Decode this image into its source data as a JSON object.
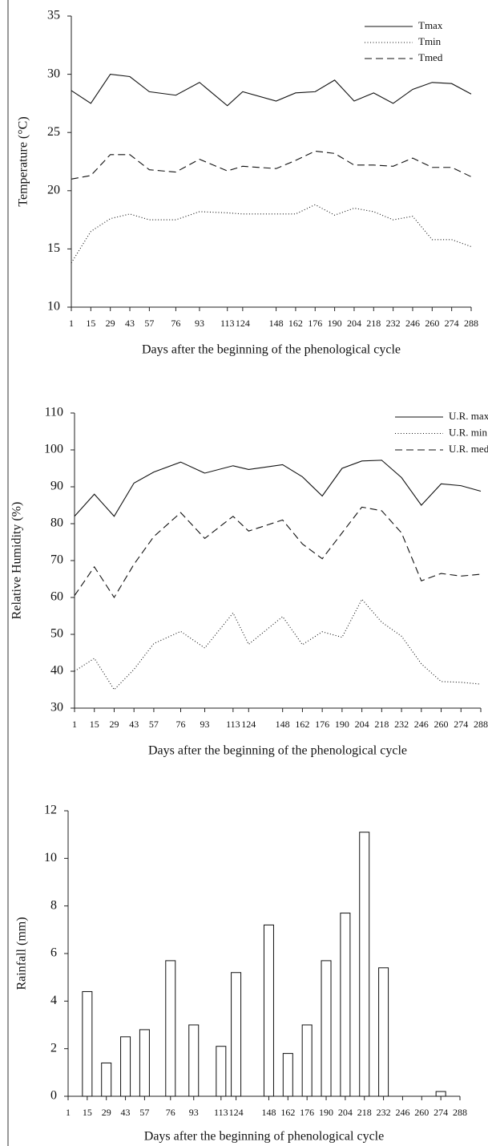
{
  "chart_data": [
    {
      "type": "line",
      "y_label": "Temperature (°C)",
      "x_label": "Days after the beginning of the phenological cycle",
      "x": [
        1,
        15,
        29,
        43,
        57,
        76,
        93,
        113,
        124,
        148,
        162,
        176,
        190,
        204,
        218,
        232,
        246,
        260,
        274,
        288
      ],
      "xlim": [
        1,
        288
      ],
      "xticks": [
        1,
        15,
        29,
        43,
        57,
        76,
        93,
        113,
        124,
        148,
        162,
        176,
        190,
        204,
        218,
        232,
        246,
        260,
        274,
        288
      ],
      "ylim": [
        10,
        35
      ],
      "yticks": [
        10,
        15,
        20,
        25,
        30,
        35
      ],
      "legend": "upper right",
      "series": [
        {
          "name": "Tmax",
          "color": "#111111",
          "dash": "solid",
          "values": [
            28.6,
            27.5,
            30.0,
            29.8,
            28.5,
            28.2,
            29.3,
            27.3,
            28.5,
            27.7,
            28.4,
            28.5,
            29.5,
            27.7,
            28.4,
            27.5,
            28.7,
            29.3,
            29.2,
            28.3
          ]
        },
        {
          "name": "Tmin",
          "color": "#111111",
          "dash": "dotted",
          "values": [
            13.8,
            16.5,
            17.6,
            18.0,
            17.5,
            17.5,
            18.2,
            18.1,
            18.0,
            18.0,
            18.0,
            18.8,
            17.9,
            18.5,
            18.2,
            17.5,
            17.8,
            15.8,
            15.8,
            15.2
          ]
        },
        {
          "name": "Tmed",
          "color": "#111111",
          "dash": "dashed",
          "values": [
            21.0,
            21.3,
            23.1,
            23.1,
            21.8,
            21.6,
            22.7,
            21.7,
            22.1,
            21.9,
            22.6,
            23.4,
            23.2,
            22.2,
            22.2,
            22.1,
            22.8,
            22.0,
            22.0,
            21.2
          ]
        }
      ]
    },
    {
      "type": "line",
      "y_label": "Relative Humidity (%)",
      "x_label": "Days after the beginning of the phenological cycle",
      "x": [
        1,
        15,
        29,
        43,
        57,
        76,
        93,
        113,
        124,
        148,
        162,
        176,
        190,
        204,
        218,
        232,
        246,
        260,
        274,
        288
      ],
      "xlim": [
        1,
        288
      ],
      "xticks": [
        1,
        15,
        29,
        43,
        57,
        76,
        93,
        113,
        124,
        148,
        162,
        176,
        190,
        204,
        218,
        232,
        246,
        260,
        274,
        288
      ],
      "ylim": [
        30,
        110
      ],
      "yticks": [
        30,
        40,
        50,
        60,
        70,
        80,
        90,
        100,
        110
      ],
      "legend": "upper right",
      "series": [
        {
          "name": "U.R. max",
          "color": "#111111",
          "dash": "solid",
          "values": [
            82,
            88,
            82,
            91,
            94,
            96.7,
            93.7,
            95.7,
            94.7,
            96,
            92.7,
            87.5,
            95,
            97,
            97.2,
            92.5,
            85,
            90.8,
            90.3,
            88.8
          ]
        },
        {
          "name": "U.R. min",
          "color": "#111111",
          "dash": "dotted",
          "values": [
            40,
            43.5,
            35,
            40.5,
            47.5,
            50.8,
            46.3,
            55.8,
            47.3,
            54.8,
            47.2,
            50.7,
            49.2,
            59.5,
            53.3,
            49.5,
            42,
            37.2,
            37,
            36.5
          ]
        },
        {
          "name": "U.R. med",
          "color": "#111111",
          "dash": "dashed",
          "values": [
            60.5,
            68.3,
            60,
            69,
            76.5,
            83,
            76,
            82,
            78,
            81,
            74.5,
            70.5,
            77.5,
            84.5,
            83.5,
            77.5,
            64.5,
            66.5,
            65.8,
            66.3
          ]
        }
      ]
    },
    {
      "type": "bar",
      "y_label": "Rainfall (mm)",
      "x_label": "Days after the beginning of phenological cycle",
      "x": [
        1,
        15,
        29,
        43,
        57,
        76,
        93,
        113,
        124,
        148,
        162,
        176,
        190,
        204,
        218,
        232,
        246,
        260,
        274,
        288
      ],
      "xlim": [
        1,
        288
      ],
      "xticks": [
        1,
        15,
        29,
        43,
        57,
        76,
        93,
        113,
        124,
        148,
        162,
        176,
        190,
        204,
        218,
        232,
        246,
        260,
        274,
        288
      ],
      "ylim": [
        0,
        12
      ],
      "yticks": [
        0,
        2,
        4,
        6,
        8,
        10,
        12
      ],
      "color": "#ffffff",
      "values": [
        0,
        4.4,
        1.4,
        2.5,
        2.8,
        5.7,
        3.0,
        2.1,
        5.2,
        7.2,
        1.8,
        3.0,
        5.7,
        7.7,
        11.1,
        5.4,
        0,
        0,
        0.2,
        0
      ]
    }
  ]
}
